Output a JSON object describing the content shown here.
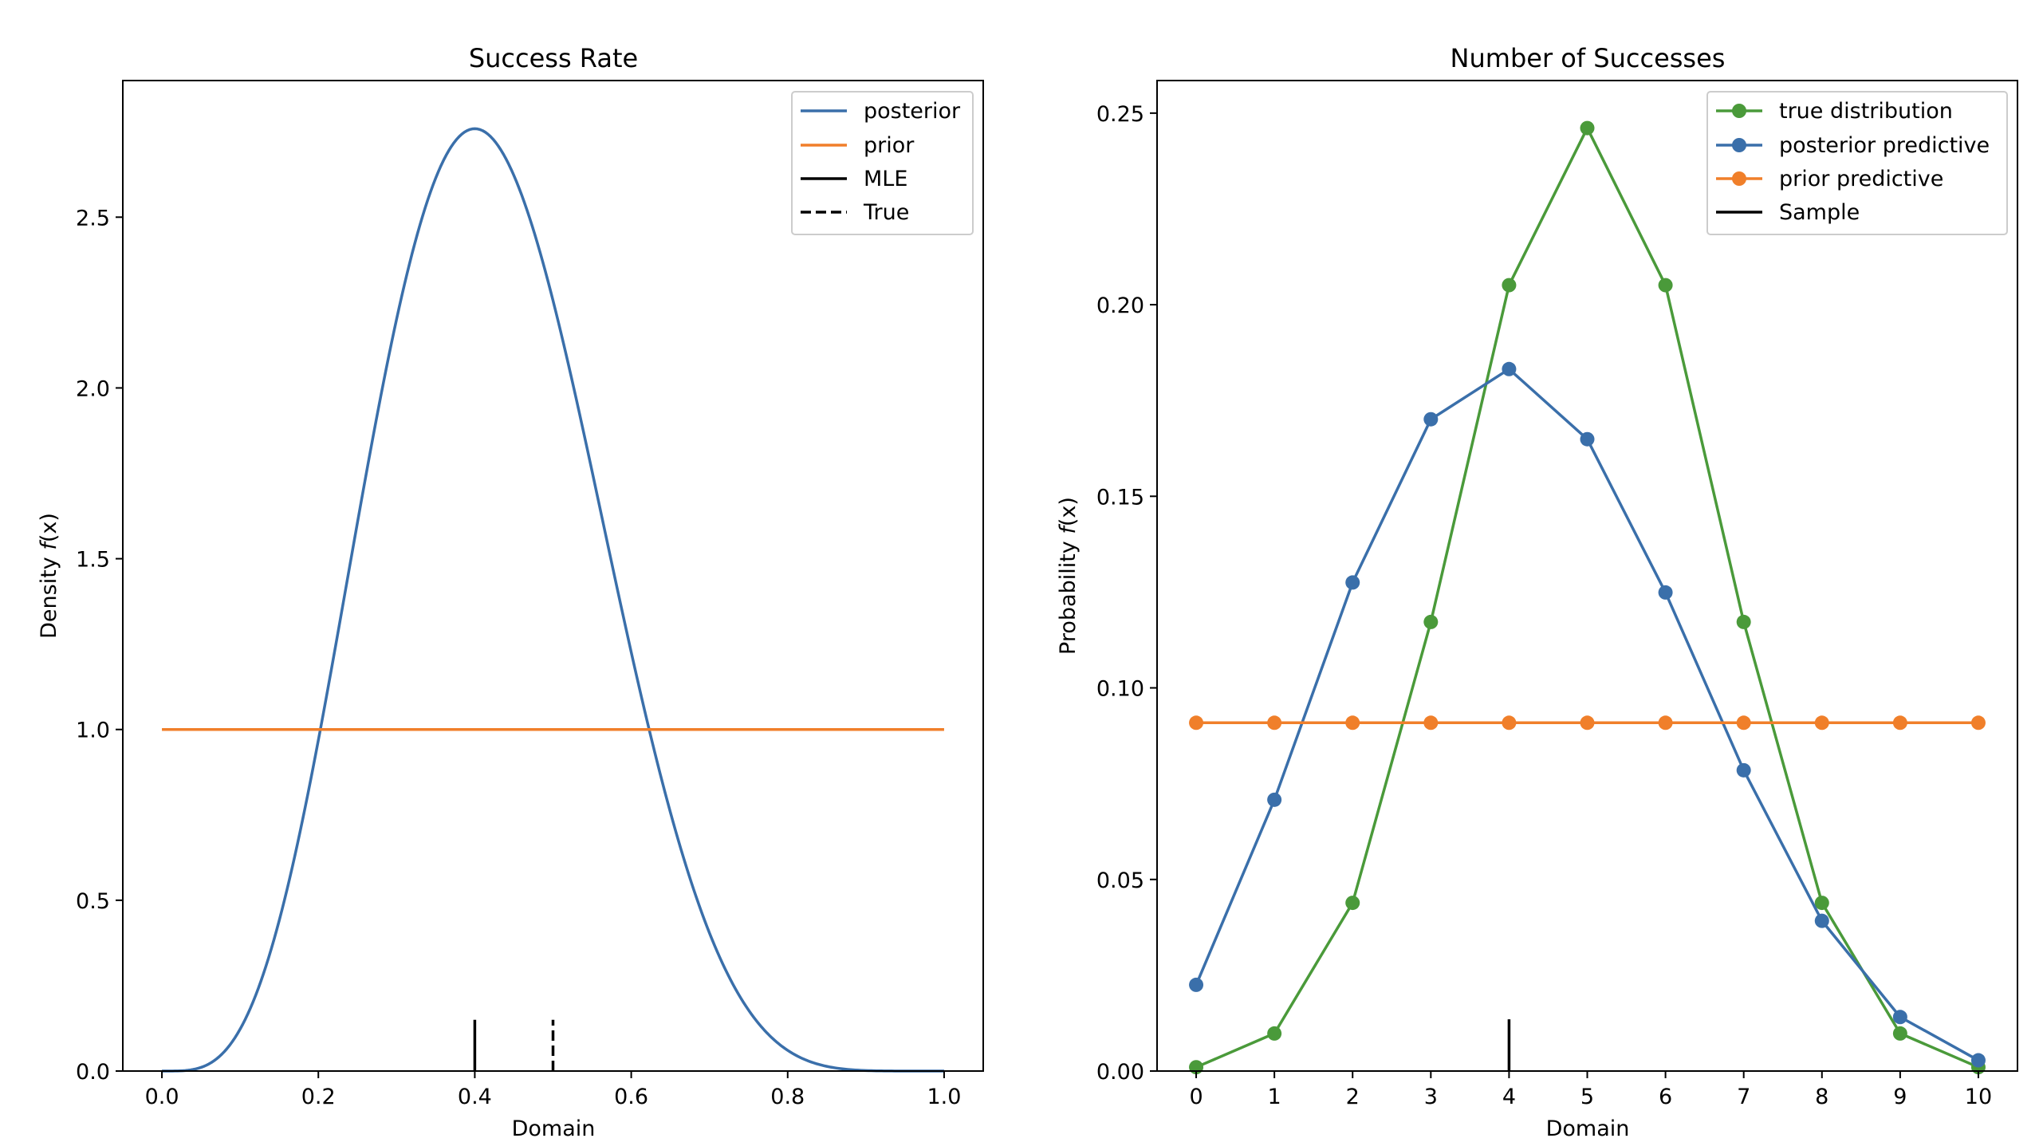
{
  "chart_data": [
    {
      "type": "line",
      "title": "Success Rate",
      "xlabel": "Domain",
      "ylabel_main": "Density ",
      "ylabel_math": "f",
      "ylabel_tail": "(x)",
      "xlim": [
        -0.05,
        1.05
      ],
      "ylim": [
        0,
        2.9
      ],
      "xticks": [
        "0.0",
        "0.2",
        "0.4",
        "0.6",
        "0.8",
        "1.0"
      ],
      "yticks": [
        "0.0",
        "0.5",
        "1.0",
        "1.5",
        "2.0",
        "2.5"
      ],
      "legend_position": "top-right",
      "series": [
        {
          "name": "posterior",
          "color": "#3a6faa",
          "distribution": "beta",
          "alpha": 5,
          "beta": 7,
          "x_range": [
            0,
            1
          ]
        },
        {
          "name": "prior",
          "color": "#f07f2a",
          "x": [
            0,
            1
          ],
          "y": [
            1,
            1
          ]
        }
      ],
      "markers": [
        {
          "name": "MLE",
          "x": 0.4,
          "height": 0.15,
          "style": "solid",
          "color": "#000000"
        },
        {
          "name": "True",
          "x": 0.5,
          "height": 0.15,
          "style": "dashed",
          "color": "#000000"
        }
      ]
    },
    {
      "type": "line",
      "title": "Number of Successes",
      "xlabel": "Domain",
      "ylabel_main": "Probability ",
      "ylabel_math": "f",
      "ylabel_tail": "(x)",
      "xlim": [
        -0.5,
        10.5
      ],
      "ylim": [
        0,
        0.2585
      ],
      "xticks": [
        "0",
        "1",
        "2",
        "3",
        "4",
        "5",
        "6",
        "7",
        "8",
        "9",
        "10"
      ],
      "yticks": [
        "0.00",
        "0.05",
        "0.10",
        "0.15",
        "0.20",
        "0.25"
      ],
      "legend_position": "top-right",
      "x": [
        0,
        1,
        2,
        3,
        4,
        5,
        6,
        7,
        8,
        9,
        10
      ],
      "series": [
        {
          "name": "true distribution",
          "color": "#4a9a3a",
          "values": [
            0.001,
            0.0098,
            0.0439,
            0.1172,
            0.2051,
            0.2461,
            0.2051,
            0.1172,
            0.0439,
            0.0098,
            0.001
          ]
        },
        {
          "name": "posterior predictive",
          "color": "#3a6faa",
          "values": [
            0.0225,
            0.0708,
            0.1275,
            0.1701,
            0.1832,
            0.1649,
            0.1249,
            0.0785,
            0.0392,
            0.0141,
            0.0028
          ]
        },
        {
          "name": "prior predictive",
          "color": "#f07f2a",
          "values": [
            0.0909,
            0.0909,
            0.0909,
            0.0909,
            0.0909,
            0.0909,
            0.0909,
            0.0909,
            0.0909,
            0.0909,
            0.0909
          ]
        }
      ],
      "markers": [
        {
          "name": "Sample",
          "x": 4,
          "height": 0.0135,
          "style": "solid",
          "color": "#000000"
        }
      ]
    }
  ]
}
